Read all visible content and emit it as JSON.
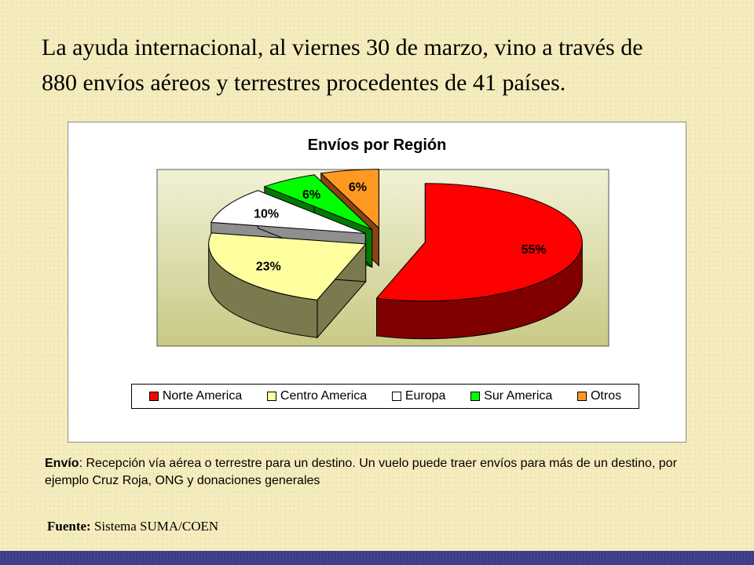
{
  "headline": {
    "line1": "La ayuda internacional, al viernes 30 de marzo, vino a través de",
    "line2": "880 envíos aéreos y terrestres procedentes de 41 países."
  },
  "chart_data": {
    "type": "pie",
    "title": "Envíos por Región",
    "categories": [
      "Norte America",
      "Centro America",
      "Europa",
      "Sur America",
      "Otros"
    ],
    "values": [
      55,
      23,
      10,
      6,
      6
    ],
    "value_labels": [
      "55%",
      "23%",
      "10%",
      "6%",
      "6%"
    ],
    "colors": [
      "#ff0000",
      "#ffffa0",
      "#ffffff",
      "#00ff00",
      "#ff9922"
    ],
    "side_colors": [
      "#800000",
      "#7a7a4e",
      "#8f8f8f",
      "#007a00",
      "#8b4513"
    ],
    "exploded": true,
    "three_d": true,
    "legend_position": "bottom"
  },
  "note": {
    "term": "Envío",
    "text": ": Recepción vía aérea o terrestre para un destino. Un vuelo puede traer envíos para más de un destino, por ejemplo Cruz Roja, ONG y  donaciones generales"
  },
  "source": {
    "label": "Fuente:",
    "text": " Sistema SUMA/COEN"
  }
}
